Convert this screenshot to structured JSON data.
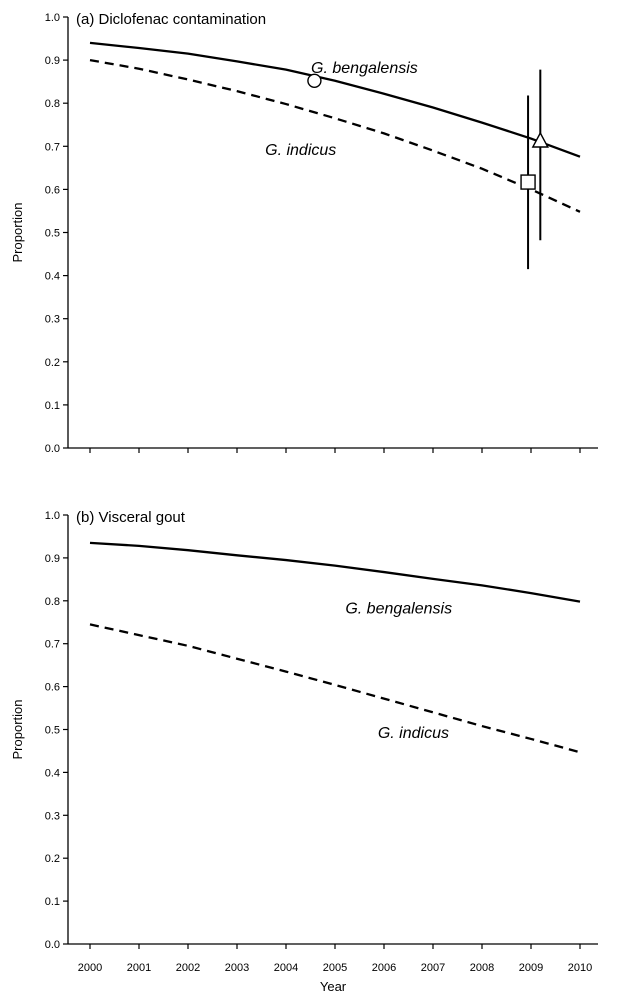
{
  "chart_data": [
    {
      "type": "line",
      "title": "(a) Diclofenac contamination",
      "xlabel": "",
      "ylabel": "Proportion",
      "xlim": [
        2000,
        2010
      ],
      "ylim": [
        0,
        1
      ],
      "y_ticks": [
        "0.0",
        "0.1",
        "0.2",
        "0.3",
        "0.4",
        "0.5",
        "0.6",
        "0.7",
        "0.8",
        "0.9",
        "1.0"
      ],
      "x_ticks": [
        2000,
        2001,
        2002,
        2003,
        2004,
        2005,
        2006,
        2007,
        2008,
        2009,
        2010
      ],
      "grid": false,
      "series": [
        {
          "name": "G. bengalensis",
          "label_at": [
            2005.6,
            0.87
          ],
          "style": "solid",
          "x": [
            2000,
            2001,
            2002,
            2003,
            2004,
            2005,
            2006,
            2007,
            2008,
            2009,
            2010
          ],
          "y": [
            0.94,
            0.928,
            0.915,
            0.897,
            0.878,
            0.852,
            0.822,
            0.79,
            0.755,
            0.718,
            0.676
          ]
        },
        {
          "name": "G. indicus",
          "label_at": [
            2004.3,
            0.68
          ],
          "style": "dashed",
          "x": [
            2000,
            2001,
            2002,
            2003,
            2004,
            2005,
            2006,
            2007,
            2008,
            2009,
            2010
          ],
          "y": [
            0.9,
            0.88,
            0.855,
            0.828,
            0.798,
            0.765,
            0.73,
            0.69,
            0.648,
            0.6,
            0.548
          ]
        }
      ],
      "points": [
        {
          "marker": "circle",
          "x": 2004.58,
          "y": 0.852
        },
        {
          "marker": "square",
          "x": 2008.94,
          "y": 0.617,
          "ci": [
            0.415,
            0.818
          ]
        },
        {
          "marker": "triangle",
          "x": 2009.19,
          "y": 0.71,
          "ci": [
            0.482,
            0.878
          ]
        }
      ]
    },
    {
      "type": "line",
      "title": "(b) Visceral gout",
      "xlabel": "Year",
      "ylabel": "Proportion",
      "xlim": [
        2000,
        2010
      ],
      "ylim": [
        0,
        1
      ],
      "y_ticks": [
        "0.0",
        "0.1",
        "0.2",
        "0.3",
        "0.4",
        "0.5",
        "0.6",
        "0.7",
        "0.8",
        "0.9",
        "1.0"
      ],
      "x_ticks": [
        2000,
        2001,
        2002,
        2003,
        2004,
        2005,
        2006,
        2007,
        2008,
        2009,
        2010
      ],
      "grid": false,
      "series": [
        {
          "name": "G. bengalensis",
          "label_at": [
            2006.3,
            0.77
          ],
          "style": "solid",
          "x": [
            2000,
            2001,
            2002,
            2003,
            2004,
            2005,
            2006,
            2007,
            2008,
            2009,
            2010
          ],
          "y": [
            0.935,
            0.928,
            0.918,
            0.906,
            0.895,
            0.882,
            0.867,
            0.851,
            0.836,
            0.818,
            0.798
          ]
        },
        {
          "name": "G. indicus",
          "label_at": [
            2006.6,
            0.48
          ],
          "style": "dashed",
          "x": [
            2000,
            2001,
            2002,
            2003,
            2004,
            2005,
            2006,
            2007,
            2008,
            2009,
            2010
          ],
          "y": [
            0.745,
            0.72,
            0.695,
            0.665,
            0.635,
            0.604,
            0.572,
            0.54,
            0.508,
            0.478,
            0.447
          ]
        }
      ],
      "points": []
    }
  ]
}
